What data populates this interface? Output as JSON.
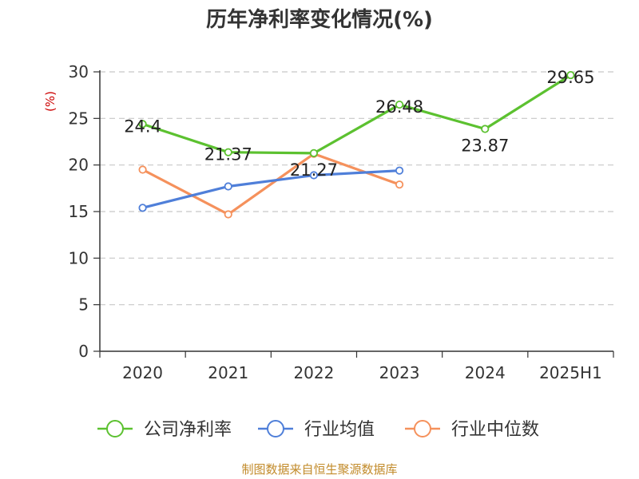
{
  "chart_data": {
    "type": "line",
    "title": "历年净利率变化情况(%)",
    "ylabel": "(%)",
    "categories": [
      "2020",
      "2021",
      "2022",
      "2023",
      "2024",
      "2025H1"
    ],
    "ylim": [
      0,
      30
    ],
    "yticks": [
      0,
      5,
      10,
      15,
      20,
      25,
      30
    ],
    "grid": "horizontal-dashed",
    "legend_position": "bottom",
    "series": [
      {
        "name": "公司净利率",
        "color": "#5cc130",
        "values": [
          24.4,
          21.37,
          21.27,
          26.48,
          23.87,
          29.65
        ],
        "labels": [
          "24.4",
          "21.37",
          "21.27",
          "26.48",
          "23.87",
          "29.65"
        ]
      },
      {
        "name": "行业均值",
        "color": "#4f7fd9",
        "values": [
          15.4,
          17.7,
          18.9,
          19.4,
          null,
          null
        ]
      },
      {
        "name": "行业中位数",
        "color": "#f5915c",
        "values": [
          19.5,
          14.7,
          21.2,
          17.9,
          null,
          null
        ]
      }
    ],
    "source": "制图数据来自恒生聚源数据库"
  }
}
